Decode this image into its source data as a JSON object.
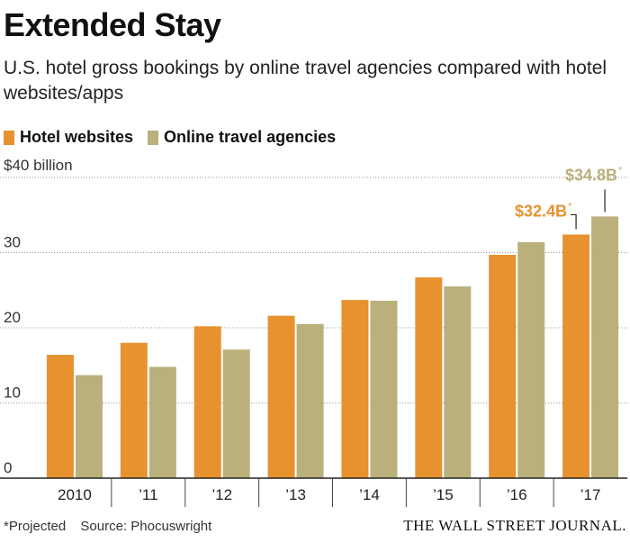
{
  "title": "Extended Stay",
  "subtitle": "U.S. hotel gross bookings by online travel agencies compared with hotel websites/apps",
  "legend": [
    {
      "label": "Hotel websites",
      "color": "#E8912F"
    },
    {
      "label": "Online travel agencies",
      "color": "#B9B07C"
    }
  ],
  "footer": {
    "note": "*Projected",
    "source": "Source: Phocuswright",
    "publisher": "THE WALL STREET JOURNAL."
  },
  "chart_data": {
    "type": "bar",
    "categories": [
      "2010",
      "’11",
      "’12",
      "’13",
      "’14",
      "’15",
      "’16",
      "’17"
    ],
    "series": [
      {
        "name": "Hotel websites",
        "color": "#E8912F",
        "values": [
          16.4,
          18.0,
          20.2,
          21.6,
          23.7,
          26.7,
          29.7,
          32.4
        ]
      },
      {
        "name": "Online travel agencies",
        "color": "#B9B07C",
        "values": [
          13.7,
          14.8,
          17.1,
          20.5,
          23.6,
          25.5,
          31.4,
          34.8
        ]
      }
    ],
    "ylim": [
      0,
      40
    ],
    "yticks": [
      {
        "value": 0,
        "label": "0"
      },
      {
        "value": 10,
        "label": "10"
      },
      {
        "value": 20,
        "label": "20"
      },
      {
        "value": 30,
        "label": "30"
      },
      {
        "value": 40,
        "label": "$40 billion"
      }
    ],
    "annotations": [
      {
        "series": 0,
        "index": 7,
        "text": "$32.4B",
        "mark": "*"
      },
      {
        "series": 1,
        "index": 7,
        "text": "$34.8B",
        "mark": "*"
      }
    ],
    "grid": true
  }
}
